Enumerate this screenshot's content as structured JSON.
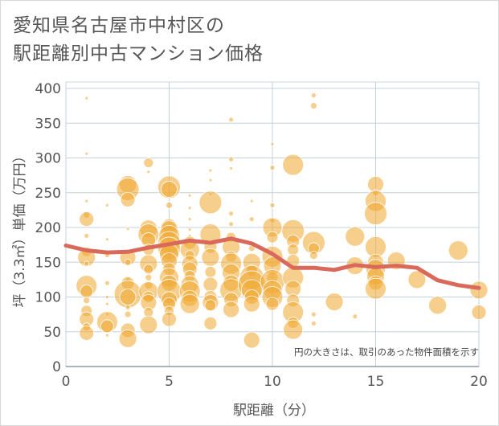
{
  "title_line1": "愛知県名古屋市中村区の",
  "title_line2": "駅距離別中古マンション価格",
  "chart_data": {
    "type": "scatter",
    "xlabel": "駅距離（分）",
    "ylabel": "坪（3.3㎡）単価（万円）",
    "xlim": [
      0,
      20
    ],
    "ylim": [
      0,
      400
    ],
    "xticks": [
      0,
      5,
      10,
      15,
      20
    ],
    "yticks": [
      0,
      50,
      100,
      150,
      200,
      250,
      300,
      350,
      400
    ],
    "grid": true,
    "note": "円の大きさは、取引のあった物件面積を示す",
    "colors": {
      "bubble": "#f0a830",
      "line": "#d9695a"
    },
    "trend_line": {
      "x": [
        0,
        1,
        2,
        3,
        4,
        5,
        6,
        7,
        8,
        9,
        10,
        11,
        12,
        13,
        14,
        15,
        16,
        17,
        18,
        19,
        20
      ],
      "y": [
        174,
        167,
        164,
        165,
        171,
        176,
        181,
        178,
        184,
        177,
        162,
        142,
        142,
        139,
        146,
        143,
        145,
        142,
        124,
        117,
        113
      ]
    },
    "points": [
      [
        1,
        386,
        2
      ],
      [
        1,
        306,
        2
      ],
      [
        1,
        238,
        2
      ],
      [
        1,
        218,
        4
      ],
      [
        1,
        212,
        9
      ],
      [
        1,
        188,
        3
      ],
      [
        1,
        165,
        6
      ],
      [
        1,
        157,
        11
      ],
      [
        1,
        148,
        3
      ],
      [
        1,
        116,
        13
      ],
      [
        1,
        108,
        8
      ],
      [
        1,
        95,
        4
      ],
      [
        1,
        80,
        7
      ],
      [
        1,
        68,
        9
      ],
      [
        1,
        57,
        5
      ],
      [
        1,
        48,
        9
      ],
      [
        2,
        232,
        2
      ],
      [
        2,
        183,
        2
      ],
      [
        2,
        160,
        3
      ],
      [
        2,
        120,
        3
      ],
      [
        2,
        100,
        2
      ],
      [
        2,
        90,
        2
      ],
      [
        2,
        75,
        2
      ],
      [
        2,
        64,
        13
      ],
      [
        2,
        58,
        8
      ],
      [
        2,
        45,
        2
      ],
      [
        3,
        262,
        11
      ],
      [
        3,
        255,
        14
      ],
      [
        3,
        240,
        9
      ],
      [
        3,
        198,
        2
      ],
      [
        3,
        165,
        2
      ],
      [
        3,
        157,
        10
      ],
      [
        3,
        150,
        4
      ],
      [
        3,
        125,
        3
      ],
      [
        3,
        120,
        8
      ],
      [
        3,
        104,
        17
      ],
      [
        3,
        100,
        10
      ],
      [
        3,
        85,
        3
      ],
      [
        3,
        75,
        4
      ],
      [
        3,
        52,
        9
      ],
      [
        3,
        40,
        11
      ],
      [
        4,
        293,
        6
      ],
      [
        4,
        280,
        2
      ],
      [
        4,
        198,
        11
      ],
      [
        4,
        190,
        13
      ],
      [
        4,
        182,
        9
      ],
      [
        4,
        168,
        7
      ],
      [
        4,
        148,
        11
      ],
      [
        4,
        140,
        6
      ],
      [
        4,
        128,
        4
      ],
      [
        4,
        117,
        5
      ],
      [
        4,
        108,
        12
      ],
      [
        4,
        100,
        7
      ],
      [
        4,
        92,
        10
      ],
      [
        4,
        78,
        6
      ],
      [
        4,
        60,
        11
      ],
      [
        5,
        258,
        14
      ],
      [
        5,
        255,
        10
      ],
      [
        5,
        232,
        4
      ],
      [
        5,
        202,
        9
      ],
      [
        5,
        197,
        11
      ],
      [
        5,
        188,
        13
      ],
      [
        5,
        178,
        14
      ],
      [
        5,
        170,
        14
      ],
      [
        5,
        162,
        12
      ],
      [
        5,
        152,
        10
      ],
      [
        5,
        140,
        8
      ],
      [
        5,
        128,
        12
      ],
      [
        5,
        120,
        10
      ],
      [
        5,
        108,
        15
      ],
      [
        5,
        96,
        10
      ],
      [
        5,
        90,
        8
      ],
      [
        5,
        80,
        6
      ],
      [
        5,
        68,
        9
      ],
      [
        6,
        246,
        2
      ],
      [
        6,
        228,
        2
      ],
      [
        6,
        212,
        2
      ],
      [
        6,
        197,
        2
      ],
      [
        6,
        188,
        2
      ],
      [
        6,
        178,
        8
      ],
      [
        6,
        168,
        12
      ],
      [
        6,
        160,
        6
      ],
      [
        6,
        148,
        10
      ],
      [
        6,
        140,
        9
      ],
      [
        6,
        130,
        7
      ],
      [
        6,
        118,
        11
      ],
      [
        6,
        108,
        13
      ],
      [
        6,
        98,
        10
      ],
      [
        6,
        90,
        12
      ],
      [
        7,
        282,
        2
      ],
      [
        7,
        268,
        2
      ],
      [
        7,
        248,
        2
      ],
      [
        7,
        236,
        14
      ],
      [
        7,
        190,
        13
      ],
      [
        7,
        172,
        8
      ],
      [
        7,
        157,
        11
      ],
      [
        7,
        136,
        7
      ],
      [
        7,
        118,
        9
      ],
      [
        7,
        100,
        8
      ],
      [
        7,
        92,
        10
      ],
      [
        7,
        88,
        7
      ],
      [
        7,
        62,
        8
      ],
      [
        8,
        355,
        3
      ],
      [
        8,
        298,
        3
      ],
      [
        8,
        285,
        2
      ],
      [
        8,
        220,
        3
      ],
      [
        8,
        205,
        3
      ],
      [
        8,
        186,
        6
      ],
      [
        8,
        172,
        11
      ],
      [
        8,
        158,
        7
      ],
      [
        8,
        148,
        13
      ],
      [
        8,
        135,
        11
      ],
      [
        8,
        120,
        10
      ],
      [
        8,
        110,
        14
      ],
      [
        8,
        96,
        9
      ],
      [
        8,
        82,
        10
      ],
      [
        9,
        238,
        2
      ],
      [
        9,
        212,
        3
      ],
      [
        9,
        170,
        4
      ],
      [
        9,
        150,
        11
      ],
      [
        9,
        138,
        7
      ],
      [
        9,
        128,
        15
      ],
      [
        9,
        118,
        17
      ],
      [
        9,
        110,
        13
      ],
      [
        9,
        100,
        9
      ],
      [
        9,
        90,
        10
      ],
      [
        9,
        38,
        10
      ],
      [
        10,
        320,
        2
      ],
      [
        10,
        286,
        3
      ],
      [
        10,
        232,
        3
      ],
      [
        10,
        210,
        3
      ],
      [
        10,
        200,
        12
      ],
      [
        10,
        186,
        7
      ],
      [
        10,
        158,
        13
      ],
      [
        10,
        145,
        11
      ],
      [
        10,
        128,
        7
      ],
      [
        10,
        122,
        15
      ],
      [
        10,
        110,
        12
      ],
      [
        10,
        100,
        13
      ],
      [
        10,
        90,
        8
      ],
      [
        11,
        290,
        13
      ],
      [
        11,
        195,
        14
      ],
      [
        11,
        180,
        8
      ],
      [
        11,
        168,
        7
      ],
      [
        11,
        152,
        8
      ],
      [
        11,
        128,
        13
      ],
      [
        11,
        112,
        10
      ],
      [
        11,
        95,
        8
      ],
      [
        11,
        78,
        13
      ],
      [
        11,
        63,
        7
      ],
      [
        11,
        53,
        12
      ],
      [
        12,
        390,
        3
      ],
      [
        12,
        375,
        4
      ],
      [
        12,
        178,
        14
      ],
      [
        12,
        170,
        7
      ],
      [
        12,
        160,
        5
      ],
      [
        12,
        75,
        3
      ],
      [
        12,
        62,
        3
      ],
      [
        13,
        93,
        11
      ],
      [
        14,
        187,
        12
      ],
      [
        14,
        145,
        11
      ],
      [
        14,
        72,
        3
      ],
      [
        15,
        262,
        10
      ],
      [
        15,
        250,
        4
      ],
      [
        15,
        238,
        13
      ],
      [
        15,
        220,
        14
      ],
      [
        15,
        172,
        13
      ],
      [
        15,
        150,
        10
      ],
      [
        15,
        140,
        12
      ],
      [
        15,
        130,
        11
      ],
      [
        15,
        120,
        9
      ],
      [
        15,
        112,
        13
      ],
      [
        16,
        152,
        11
      ],
      [
        17,
        125,
        11
      ],
      [
        18,
        88,
        11
      ],
      [
        19,
        167,
        12
      ],
      [
        20,
        110,
        11
      ],
      [
        20,
        78,
        9
      ]
    ]
  }
}
